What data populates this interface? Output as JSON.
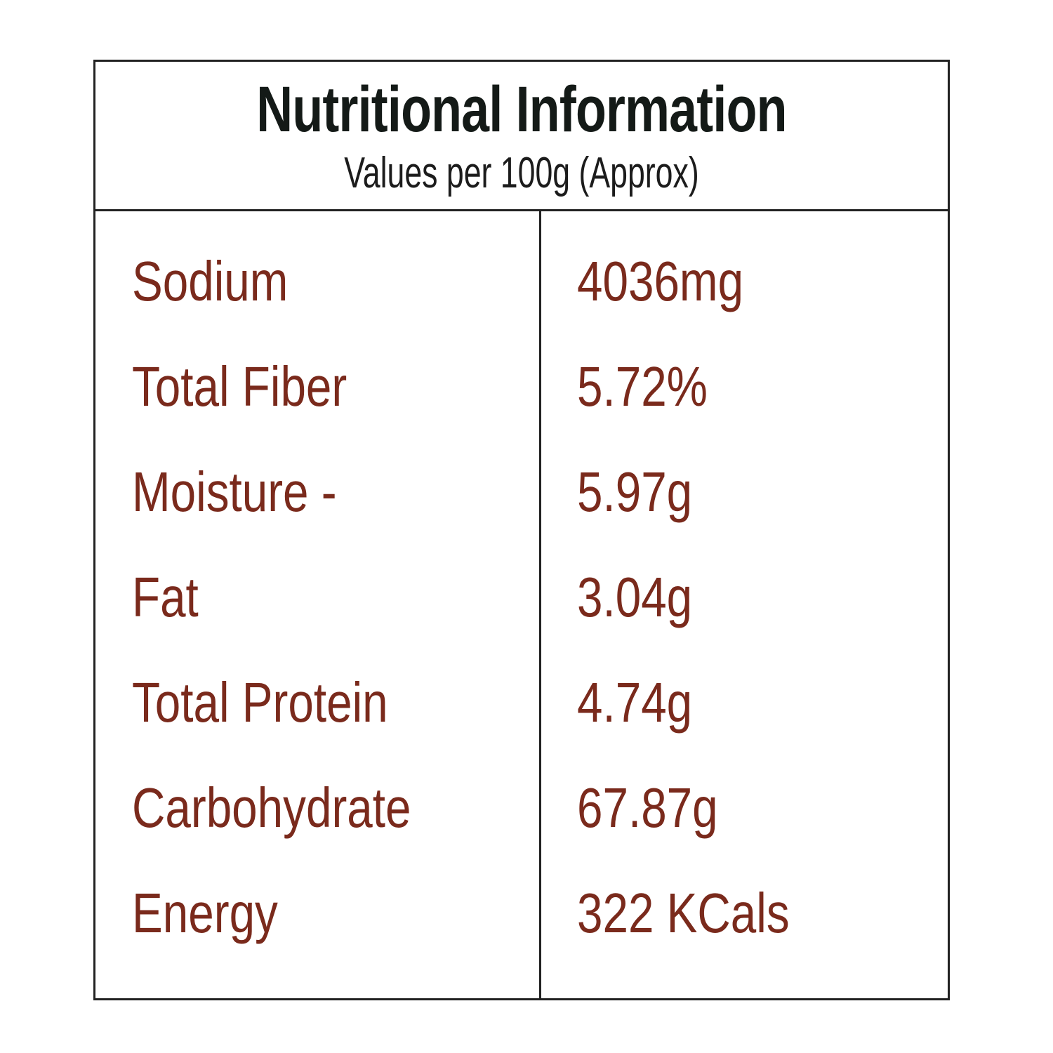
{
  "header": {
    "title": "Nutritional Information",
    "subtitle": "Values per 100g (Approx)"
  },
  "nutrients": [
    {
      "label": "Sodium",
      "value": "4036mg"
    },
    {
      "label": "Total Fiber",
      "value": "5.72%"
    },
    {
      "label": "Moisture -",
      "value": "5.97g"
    },
    {
      "label": "Fat",
      "value": "3.04g"
    },
    {
      "label": "Total Protein",
      "value": "4.74g"
    },
    {
      "label": "Carbohydrate",
      "value": "67.87g"
    },
    {
      "label": "Energy",
      "value": "322 KCals"
    }
  ],
  "colors": {
    "border": "#222222",
    "title_text": "#141a17",
    "nutrient_text": "#7a2a1c"
  }
}
